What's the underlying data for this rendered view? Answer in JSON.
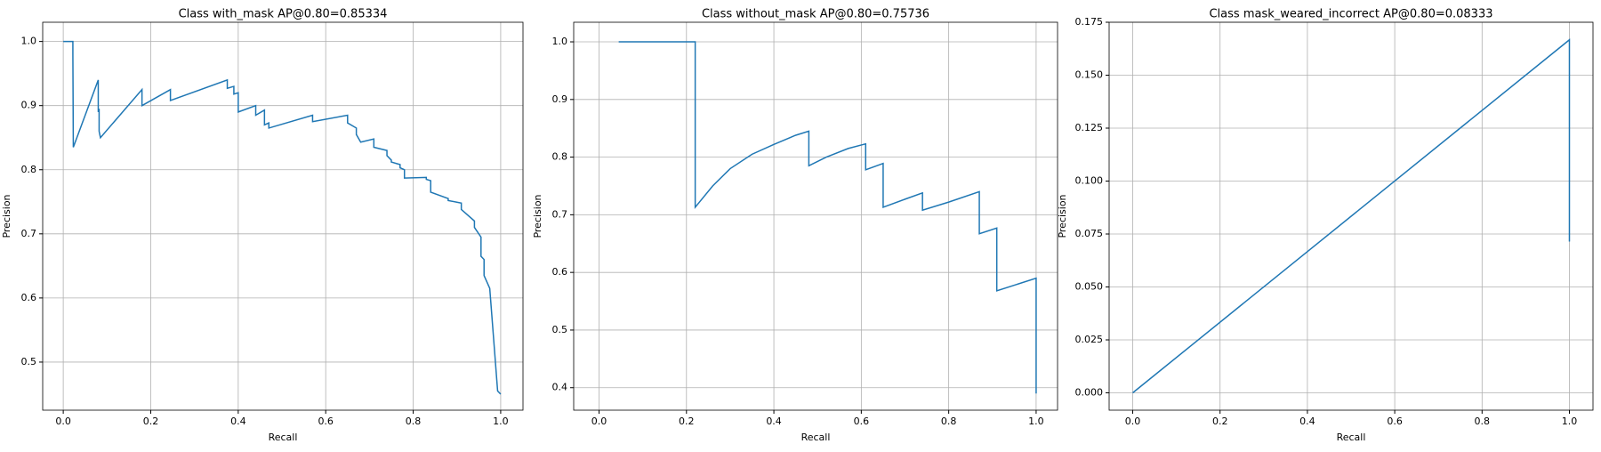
{
  "chart_data": [
    {
      "type": "line",
      "title": "Class with_mask AP@0.80=0.85334",
      "xlabel": "Recall",
      "ylabel": "Precision",
      "color": "#1f77b4",
      "grid": true,
      "xlim": [
        -0.047,
        1.051
      ],
      "ylim": [
        0.425,
        1.03
      ],
      "xticks": [
        {
          "value": 0,
          "label": "0.0"
        },
        0.2,
        0.4,
        0.6,
        0.8,
        {
          "value": 1,
          "label": "1.0"
        }
      ],
      "yticks": [
        0.5,
        0.6,
        0.7,
        0.8,
        0.9,
        {
          "value": 1,
          "label": "1.0"
        }
      ],
      "x": [
        0,
        0.022,
        0.022,
        0.023,
        0.08,
        0.08,
        0.082,
        0.082,
        0.085,
        0.18,
        0.18,
        0.245,
        0.245,
        0.375,
        0.375,
        0.39,
        0.39,
        0.4,
        0.4,
        0.44,
        0.44,
        0.46,
        0.46,
        0.47,
        0.47,
        0.57,
        0.57,
        0.65,
        0.65,
        0.67,
        0.67,
        0.68,
        0.68,
        0.71,
        0.71,
        0.74,
        0.74,
        0.75,
        0.75,
        0.77,
        0.77,
        0.78,
        0.78,
        0.83,
        0.83,
        0.84,
        0.84,
        0.88,
        0.88,
        0.91,
        0.91,
        0.94,
        0.94,
        0.955,
        0.955,
        0.962,
        0.962,
        0.975,
        0.975,
        0.993,
        0.993,
        1.0
      ],
      "values": [
        1.0,
        1.0,
        0.98,
        0.835,
        0.94,
        0.89,
        0.895,
        0.86,
        0.85,
        0.925,
        0.9,
        0.925,
        0.908,
        0.94,
        0.927,
        0.93,
        0.918,
        0.92,
        0.89,
        0.9,
        0.885,
        0.893,
        0.87,
        0.873,
        0.865,
        0.885,
        0.875,
        0.885,
        0.873,
        0.865,
        0.855,
        0.843,
        0.843,
        0.848,
        0.835,
        0.83,
        0.822,
        0.815,
        0.812,
        0.808,
        0.803,
        0.8,
        0.787,
        0.788,
        0.785,
        0.783,
        0.765,
        0.755,
        0.752,
        0.748,
        0.738,
        0.72,
        0.71,
        0.695,
        0.665,
        0.66,
        0.635,
        0.615,
        0.615,
        0.455,
        0.455,
        0.45
      ]
    },
    {
      "type": "line",
      "title": "Class without_mask AP@0.80=0.75736",
      "xlabel": "Recall",
      "ylabel": "Precision",
      "color": "#1f77b4",
      "grid": true,
      "xlim": [
        -0.058,
        1.049
      ],
      "ylim": [
        0.361,
        1.034
      ],
      "xticks": [
        {
          "value": 0,
          "label": "0.0"
        },
        0.2,
        0.4,
        0.6,
        0.8,
        {
          "value": 1,
          "label": "1.0"
        }
      ],
      "yticks": [
        0.4,
        0.5,
        0.6,
        0.7,
        0.8,
        0.9,
        {
          "value": 1,
          "label": "1.0"
        }
      ],
      "x": [
        0.045,
        0.22,
        0.22,
        0.26,
        0.3,
        0.35,
        0.4,
        0.45,
        0.48,
        0.48,
        0.52,
        0.57,
        0.61,
        0.61,
        0.65,
        0.65,
        0.7,
        0.74,
        0.74,
        0.8,
        0.87,
        0.87,
        0.91,
        0.91,
        1.0,
        1.0
      ],
      "values": [
        1.0,
        1.0,
        0.713,
        0.75,
        0.78,
        0.805,
        0.822,
        0.838,
        0.845,
        0.785,
        0.8,
        0.815,
        0.823,
        0.778,
        0.789,
        0.713,
        0.727,
        0.738,
        0.708,
        0.722,
        0.74,
        0.667,
        0.677,
        0.568,
        0.59,
        0.39
      ]
    },
    {
      "type": "line",
      "title": "Class mask_weared_incorrect AP@0.80=0.08333",
      "xlabel": "Recall",
      "ylabel": "Precision",
      "color": "#1f77b4",
      "grid": true,
      "xlim": [
        -0.054,
        1.054
      ],
      "ylim": [
        -0.0082,
        0.175
      ],
      "xticks": [
        {
          "value": 0,
          "label": "0.0"
        },
        0.2,
        0.4,
        0.6,
        0.8,
        {
          "value": 1,
          "label": "1.0"
        }
      ],
      "yticks": [
        {
          "value": 0,
          "label": "0.000"
        },
        0.025,
        {
          "value": 0.05,
          "label": "0.050"
        },
        0.075,
        {
          "value": 0.1,
          "label": "0.100"
        },
        0.125,
        {
          "value": 0.15,
          "label": "0.150"
        },
        0.175
      ],
      "x": [
        0,
        1,
        1
      ],
      "values": [
        0,
        0.1667,
        0.0714
      ]
    }
  ]
}
